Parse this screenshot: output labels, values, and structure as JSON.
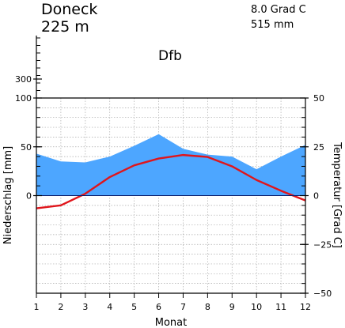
{
  "station": {
    "name": "Doneck",
    "elevation": "225 m",
    "climate_class": "Dfb"
  },
  "summary": {
    "mean_temperature": "8.0 Grad C",
    "annual_precipitation": "515 mm"
  },
  "colors": {
    "precipitation_fill": "#4da6ff",
    "temperature_line": "#e0151b",
    "grid": "#aaaaaa"
  },
  "chart_data": {
    "type": "line",
    "title": "",
    "xlabel": "Monat",
    "ylabel_left": "Niederschlag [mm]",
    "ylabel_right": "Temperatur [Grad C]",
    "categories": [
      1,
      2,
      3,
      4,
      5,
      6,
      7,
      8,
      9,
      10,
      11,
      12
    ],
    "series": [
      {
        "axis": "left",
        "kind": "area",
        "values": [
          43,
          35,
          34,
          40,
          51,
          63,
          48,
          42,
          40,
          27,
          40,
          52
        ]
      },
      {
        "axis": "right",
        "kind": "line",
        "values": [
          -6.5,
          -5.0,
          1.0,
          9.5,
          15.5,
          19.0,
          20.8,
          19.8,
          15.0,
          8.0,
          2.5,
          -2.5
        ]
      }
    ],
    "left_axis": {
      "ylim": [
        -100,
        100
      ],
      "ticks": [
        0,
        50,
        100
      ],
      "upper_ticks": [
        300
      ]
    },
    "right_axis": {
      "ylim": [
        -50,
        50
      ],
      "ticks": [
        50,
        25,
        0,
        -25,
        -50
      ]
    },
    "grid": true
  }
}
